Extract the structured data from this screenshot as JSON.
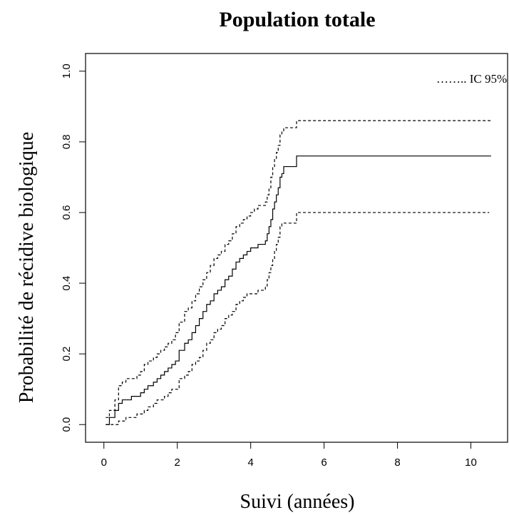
{
  "chart_data": {
    "type": "line",
    "title": "Population totale",
    "xlabel": "Suivi (années)",
    "ylabel": "Probabilité de récidive biologique",
    "xlim": [
      -0.5,
      11
    ],
    "ylim": [
      -0.05,
      1.05
    ],
    "x_ticks": [
      0,
      2,
      4,
      6,
      8,
      10
    ],
    "y_ticks": [
      0.0,
      0.2,
      0.4,
      0.6,
      0.8,
      1.0
    ],
    "x_tick_labels": [
      "0",
      "2",
      "4",
      "6",
      "8",
      "10"
    ],
    "y_tick_labels": [
      "0.0",
      "0.2",
      "0.4",
      "0.6",
      "0.8",
      "1.0"
    ],
    "legend": {
      "position": "top-right",
      "text": "…….. IC 95%"
    },
    "series": [
      {
        "style": "solid",
        "x": [
          0.05,
          0.15,
          0.3,
          0.4,
          0.5,
          0.6,
          0.75,
          0.9,
          1.0,
          1.1,
          1.2,
          1.35,
          1.45,
          1.55,
          1.65,
          1.75,
          1.85,
          1.95,
          2.05,
          2.2,
          2.3,
          2.4,
          2.5,
          2.6,
          2.7,
          2.8,
          2.9,
          3.0,
          3.1,
          3.2,
          3.3,
          3.4,
          3.5,
          3.6,
          3.7,
          3.8,
          3.9,
          4.0,
          4.1,
          4.2,
          4.3,
          4.4,
          4.45,
          4.5,
          4.55,
          4.6,
          4.65,
          4.7,
          4.75,
          4.8,
          4.85,
          4.9,
          5.0,
          5.1,
          5.25,
          10.55
        ],
        "y": [
          0.0,
          0.02,
          0.04,
          0.06,
          0.07,
          0.07,
          0.08,
          0.08,
          0.09,
          0.1,
          0.11,
          0.12,
          0.13,
          0.14,
          0.15,
          0.16,
          0.17,
          0.18,
          0.21,
          0.23,
          0.24,
          0.26,
          0.28,
          0.3,
          0.32,
          0.34,
          0.35,
          0.37,
          0.38,
          0.39,
          0.41,
          0.42,
          0.44,
          0.46,
          0.47,
          0.48,
          0.49,
          0.5,
          0.5,
          0.51,
          0.51,
          0.52,
          0.54,
          0.56,
          0.58,
          0.61,
          0.63,
          0.65,
          0.67,
          0.7,
          0.71,
          0.73,
          0.73,
          0.73,
          0.76,
          0.76
        ]
      },
      {
        "style": "dashed",
        "x": [
          0.05,
          0.15,
          0.3,
          0.4,
          0.5,
          0.6,
          0.75,
          0.9,
          1.0,
          1.1,
          1.2,
          1.35,
          1.45,
          1.55,
          1.65,
          1.75,
          1.85,
          1.95,
          2.05,
          2.2,
          2.3,
          2.4,
          2.5,
          2.6,
          2.7,
          2.8,
          2.9,
          3.0,
          3.1,
          3.2,
          3.3,
          3.4,
          3.5,
          3.6,
          3.7,
          3.8,
          3.9,
          4.0,
          4.1,
          4.2,
          4.3,
          4.4,
          4.45,
          4.5,
          4.55,
          4.6,
          4.65,
          4.7,
          4.75,
          4.8,
          4.85,
          4.9,
          5.0,
          5.1,
          5.25,
          10.55
        ],
        "y": [
          0.02,
          0.04,
          0.07,
          0.11,
          0.12,
          0.13,
          0.13,
          0.14,
          0.15,
          0.17,
          0.18,
          0.19,
          0.2,
          0.21,
          0.22,
          0.23,
          0.24,
          0.26,
          0.29,
          0.32,
          0.33,
          0.35,
          0.37,
          0.39,
          0.41,
          0.43,
          0.45,
          0.47,
          0.48,
          0.49,
          0.51,
          0.52,
          0.54,
          0.56,
          0.57,
          0.58,
          0.59,
          0.6,
          0.61,
          0.62,
          0.62,
          0.63,
          0.65,
          0.67,
          0.7,
          0.73,
          0.75,
          0.77,
          0.79,
          0.82,
          0.83,
          0.84,
          0.84,
          0.84,
          0.86,
          0.86
        ]
      },
      {
        "style": "dashed",
        "x": [
          0.05,
          0.15,
          0.3,
          0.4,
          0.5,
          0.6,
          0.75,
          0.9,
          1.0,
          1.1,
          1.2,
          1.35,
          1.45,
          1.55,
          1.65,
          1.75,
          1.85,
          1.95,
          2.05,
          2.2,
          2.3,
          2.4,
          2.5,
          2.6,
          2.7,
          2.8,
          2.9,
          3.0,
          3.1,
          3.2,
          3.3,
          3.4,
          3.5,
          3.6,
          3.7,
          3.8,
          3.9,
          4.0,
          4.1,
          4.2,
          4.3,
          4.4,
          4.45,
          4.5,
          4.55,
          4.6,
          4.65,
          4.7,
          4.75,
          4.8,
          4.85,
          4.9,
          5.0,
          5.1,
          5.25,
          10.5
        ],
        "y": [
          0.0,
          0.0,
          0.0,
          0.01,
          0.01,
          0.02,
          0.02,
          0.03,
          0.03,
          0.04,
          0.05,
          0.06,
          0.07,
          0.07,
          0.08,
          0.09,
          0.1,
          0.1,
          0.13,
          0.14,
          0.15,
          0.17,
          0.18,
          0.19,
          0.21,
          0.23,
          0.24,
          0.26,
          0.27,
          0.28,
          0.3,
          0.31,
          0.32,
          0.34,
          0.35,
          0.36,
          0.37,
          0.37,
          0.37,
          0.38,
          0.38,
          0.39,
          0.41,
          0.43,
          0.45,
          0.47,
          0.49,
          0.51,
          0.53,
          0.56,
          0.57,
          0.57,
          0.57,
          0.57,
          0.6,
          0.6
        ]
      }
    ]
  }
}
